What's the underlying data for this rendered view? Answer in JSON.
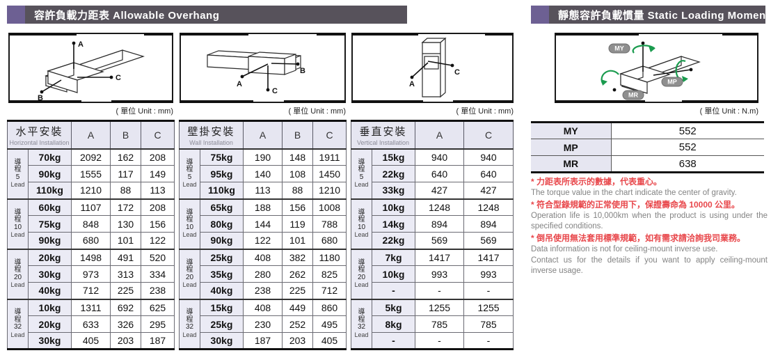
{
  "sections": {
    "overhang_title": "容許負載力距表 Allowable Overhang",
    "moment_title": "靜態容許負載慣量 Static Loading Moment"
  },
  "units": {
    "mm": "( 單位 Unit : mm)",
    "nm": "( 單位 Unit : N.m)"
  },
  "lead_label": {
    "zh": "導程",
    "en": "Lead"
  },
  "overhang_tables": [
    {
      "id": "horizontal",
      "title_zh": "水平安裝",
      "title_en": "Horizontal Installation",
      "columns": [
        "A",
        "B",
        "C"
      ],
      "groups": [
        {
          "lead": "5",
          "rows": [
            [
              "70kg",
              "2092",
              "162",
              "208"
            ],
            [
              "90kg",
              "1555",
              "117",
              "149"
            ],
            [
              "110kg",
              "1210",
              "88",
              "113"
            ]
          ]
        },
        {
          "lead": "10",
          "rows": [
            [
              "60kg",
              "1107",
              "172",
              "208"
            ],
            [
              "75kg",
              "848",
              "130",
              "156"
            ],
            [
              "90kg",
              "680",
              "101",
              "122"
            ]
          ]
        },
        {
          "lead": "20",
          "rows": [
            [
              "20kg",
              "1498",
              "491",
              "520"
            ],
            [
              "30kg",
              "973",
              "313",
              "334"
            ],
            [
              "40kg",
              "712",
              "225",
              "238"
            ]
          ]
        },
        {
          "lead": "32",
          "rows": [
            [
              "10kg",
              "1311",
              "692",
              "625"
            ],
            [
              "20kg",
              "633",
              "326",
              "295"
            ],
            [
              "30kg",
              "405",
              "203",
              "187"
            ]
          ]
        }
      ]
    },
    {
      "id": "wall",
      "title_zh": "壁掛安裝",
      "title_en": "Wall Installation",
      "columns": [
        "A",
        "B",
        "C"
      ],
      "groups": [
        {
          "lead": "5",
          "rows": [
            [
              "75kg",
              "190",
              "148",
              "1911"
            ],
            [
              "95kg",
              "140",
              "108",
              "1450"
            ],
            [
              "110kg",
              "113",
              "88",
              "1210"
            ]
          ]
        },
        {
          "lead": "10",
          "rows": [
            [
              "65kg",
              "188",
              "156",
              "1008"
            ],
            [
              "80kg",
              "144",
              "119",
              "788"
            ],
            [
              "90kg",
              "122",
              "101",
              "680"
            ]
          ]
        },
        {
          "lead": "20",
          "rows": [
            [
              "25kg",
              "408",
              "382",
              "1180"
            ],
            [
              "35kg",
              "280",
              "262",
              "825"
            ],
            [
              "40kg",
              "238",
              "225",
              "712"
            ]
          ]
        },
        {
          "lead": "32",
          "rows": [
            [
              "15kg",
              "408",
              "449",
              "860"
            ],
            [
              "25kg",
              "230",
              "252",
              "495"
            ],
            [
              "30kg",
              "187",
              "203",
              "405"
            ]
          ]
        }
      ]
    },
    {
      "id": "vertical",
      "title_zh": "垂直安裝",
      "title_en": "Vertical Installation",
      "columns": [
        "A",
        "C"
      ],
      "groups": [
        {
          "lead": "5",
          "rows": [
            [
              "15kg",
              "940",
              "940"
            ],
            [
              "22kg",
              "640",
              "640"
            ],
            [
              "33kg",
              "427",
              "427"
            ]
          ]
        },
        {
          "lead": "10",
          "rows": [
            [
              "10kg",
              "1248",
              "1248"
            ],
            [
              "14kg",
              "894",
              "894"
            ],
            [
              "22kg",
              "569",
              "569"
            ]
          ]
        },
        {
          "lead": "20",
          "rows": [
            [
              "7kg",
              "1417",
              "1417"
            ],
            [
              "10kg",
              "993",
              "993"
            ],
            [
              "-",
              "-",
              "-"
            ]
          ]
        },
        {
          "lead": "32",
          "rows": [
            [
              "5kg",
              "1255",
              "1255"
            ],
            [
              "8kg",
              "785",
              "785"
            ],
            [
              "-",
              "-",
              "-"
            ]
          ]
        }
      ]
    }
  ],
  "moment_table": {
    "rows": [
      {
        "label": "MY",
        "value": "552"
      },
      {
        "label": "MP",
        "value": "552"
      },
      {
        "label": "MR",
        "value": "638"
      }
    ]
  },
  "diagram_labels": {
    "horizontal": [
      "A",
      "B",
      "C"
    ],
    "wall": [
      "A",
      "B",
      "C"
    ],
    "vertical": [
      "A",
      "C"
    ],
    "moment": [
      "MY",
      "MP",
      "MR"
    ]
  },
  "notes": [
    {
      "type": "zh",
      "text": "* 力距表所表示的數據，代表重心。"
    },
    {
      "type": "en",
      "text": "The torque value in the chart indicate the center of gravity."
    },
    {
      "type": "zh",
      "text": "* 符合型錄規範的正常使用下，保證壽命為 10000 公里。"
    },
    {
      "type": "en",
      "text": "Operation life is 10,000km when the product is using under the specified conditions."
    },
    {
      "type": "zh",
      "text": "* 倒吊使用無法套用標準規範，如有需求請洽詢我司業務。"
    },
    {
      "type": "en",
      "text": "Data information is not for ceiling-mount inverse use."
    },
    {
      "type": "en",
      "text": "Contact us for the details if you want to apply ceiling-mount inverse usage."
    }
  ],
  "colors": {
    "header_bar_bg": "#57525b",
    "header_accent": "#6d6093",
    "table_header_bg": "#e6e6f1",
    "lead_col_bg": "#ebebf5",
    "note_red": "#e8474b",
    "note_gray": "#838383",
    "moment_green": "#1a9b4e"
  }
}
